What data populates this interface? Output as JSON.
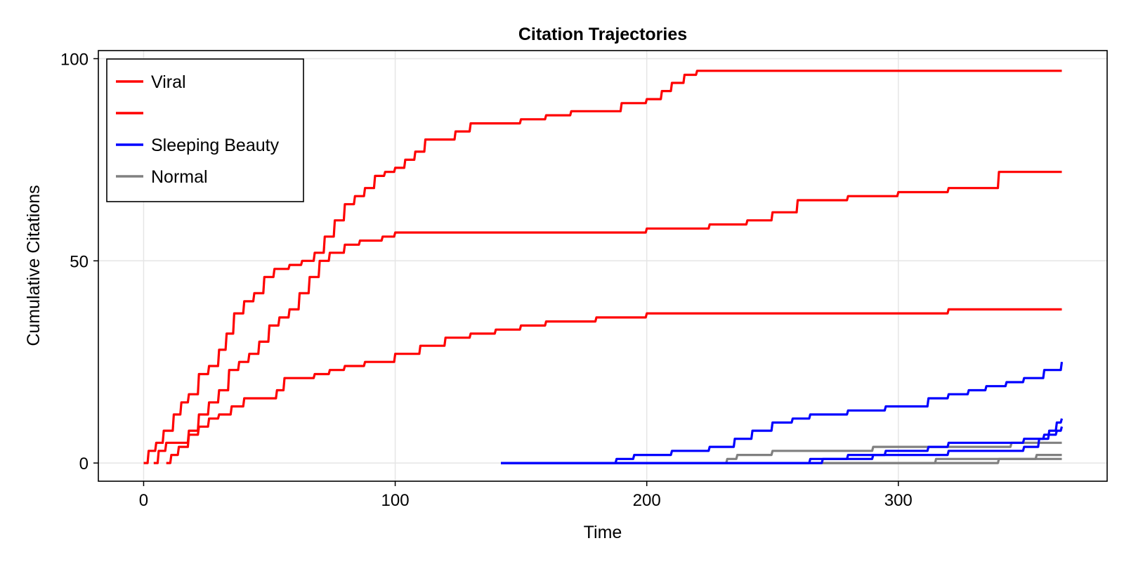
{
  "chart_data": {
    "type": "line",
    "title": "Citation Trajectories",
    "xlabel": "Time",
    "ylabel": "Cumulative Citations",
    "xlim": [
      -18,
      383
    ],
    "ylim": [
      -4.5,
      102
    ],
    "xticks": [
      0,
      100,
      200,
      300
    ],
    "yticks": [
      0,
      50,
      100
    ],
    "grid": true,
    "legend_position": "top-left",
    "legend": [
      {
        "label": "Viral",
        "color": "#ff0000"
      },
      {
        "label": "",
        "color": "#ff0000"
      },
      {
        "label": "Sleeping Beauty",
        "color": "#0000ff"
      },
      {
        "label": "Normal",
        "color": "#808080"
      }
    ],
    "series": [
      {
        "group": "Viral",
        "color": "#ff0000",
        "x": [
          0,
          2,
          5,
          8,
          12,
          15,
          18,
          22,
          26,
          30,
          33,
          36,
          40,
          44,
          48,
          52,
          58,
          63,
          68,
          72,
          76,
          80,
          84,
          88,
          92,
          96,
          100,
          104,
          108,
          112,
          118,
          124,
          130,
          140,
          150,
          160,
          170,
          180,
          190,
          200,
          206,
          210,
          215,
          220,
          225,
          300,
          365
        ],
        "y": [
          0,
          3,
          5,
          8,
          12,
          15,
          17,
          22,
          24,
          28,
          32,
          37,
          40,
          42,
          46,
          48,
          49,
          50,
          52,
          56,
          60,
          64,
          66,
          68,
          71,
          72,
          73,
          75,
          77,
          80,
          80,
          82,
          84,
          84,
          85,
          86,
          87,
          87,
          89,
          90,
          92,
          94,
          96,
          97,
          97,
          97,
          97
        ]
      },
      {
        "group": "Viral",
        "color": "#ff0000",
        "x": [
          4,
          6,
          9,
          14,
          18,
          22,
          26,
          30,
          34,
          38,
          42,
          46,
          50,
          54,
          58,
          62,
          66,
          70,
          74,
          80,
          86,
          95,
          100,
          140,
          200,
          225,
          240,
          250,
          260,
          280,
          300,
          320,
          340,
          365
        ],
        "y": [
          0,
          3,
          5,
          5,
          8,
          12,
          15,
          18,
          23,
          25,
          27,
          30,
          34,
          36,
          38,
          42,
          46,
          50,
          52,
          54,
          55,
          56,
          57,
          57,
          58,
          59,
          60,
          62,
          65,
          66,
          67,
          68,
          72,
          72
        ]
      },
      {
        "group": "Viral",
        "color": "#ff0000",
        "x": [
          9,
          11,
          14,
          18,
          22,
          26,
          30,
          35,
          40,
          50,
          53,
          56,
          62,
          68,
          74,
          80,
          88,
          96,
          100,
          110,
          120,
          130,
          140,
          150,
          160,
          180,
          200,
          260,
          320,
          365
        ],
        "y": [
          0,
          2,
          4,
          7,
          9,
          11,
          12,
          14,
          16,
          16,
          18,
          21,
          21,
          22,
          23,
          24,
          25,
          25,
          27,
          29,
          31,
          32,
          33,
          34,
          35,
          36,
          37,
          37,
          38,
          38
        ]
      },
      {
        "group": "Sleeping Beauty",
        "color": "#0000ff",
        "x": [
          142,
          188,
          195,
          210,
          225,
          235,
          242,
          250,
          258,
          265,
          280,
          295,
          312,
          320,
          328,
          335,
          343,
          350,
          358,
          365
        ],
        "y": [
          0,
          1,
          2,
          3,
          4,
          6,
          8,
          10,
          11,
          12,
          13,
          14,
          16,
          17,
          18,
          19,
          20,
          21,
          23,
          25
        ]
      },
      {
        "group": "Sleeping Beauty",
        "color": "#0000ff",
        "x": [
          142,
          265,
          280,
          295,
          312,
          320,
          350,
          358,
          363,
          365
        ],
        "y": [
          0,
          1,
          2,
          3,
          4,
          5,
          6,
          7,
          8,
          9
        ]
      },
      {
        "group": "Sleeping Beauty",
        "color": "#0000ff",
        "x": [
          142,
          270,
          290,
          320,
          350,
          356,
          360,
          363,
          365
        ],
        "y": [
          0,
          1,
          2,
          3,
          4,
          6,
          8,
          10,
          11
        ]
      },
      {
        "group": "Normal",
        "color": "#808080",
        "x": [
          142,
          232,
          236,
          250,
          290,
          320,
          345,
          365
        ],
        "y": [
          0,
          1,
          2,
          3,
          4,
          4,
          5,
          5
        ]
      },
      {
        "group": "Normal",
        "color": "#808080",
        "x": [
          142,
          315,
          340,
          355,
          365
        ],
        "y": [
          0,
          1,
          1,
          2,
          2
        ]
      },
      {
        "group": "Normal",
        "color": "#808080",
        "x": [
          142,
          340,
          365
        ],
        "y": [
          0,
          1,
          1
        ]
      }
    ]
  }
}
